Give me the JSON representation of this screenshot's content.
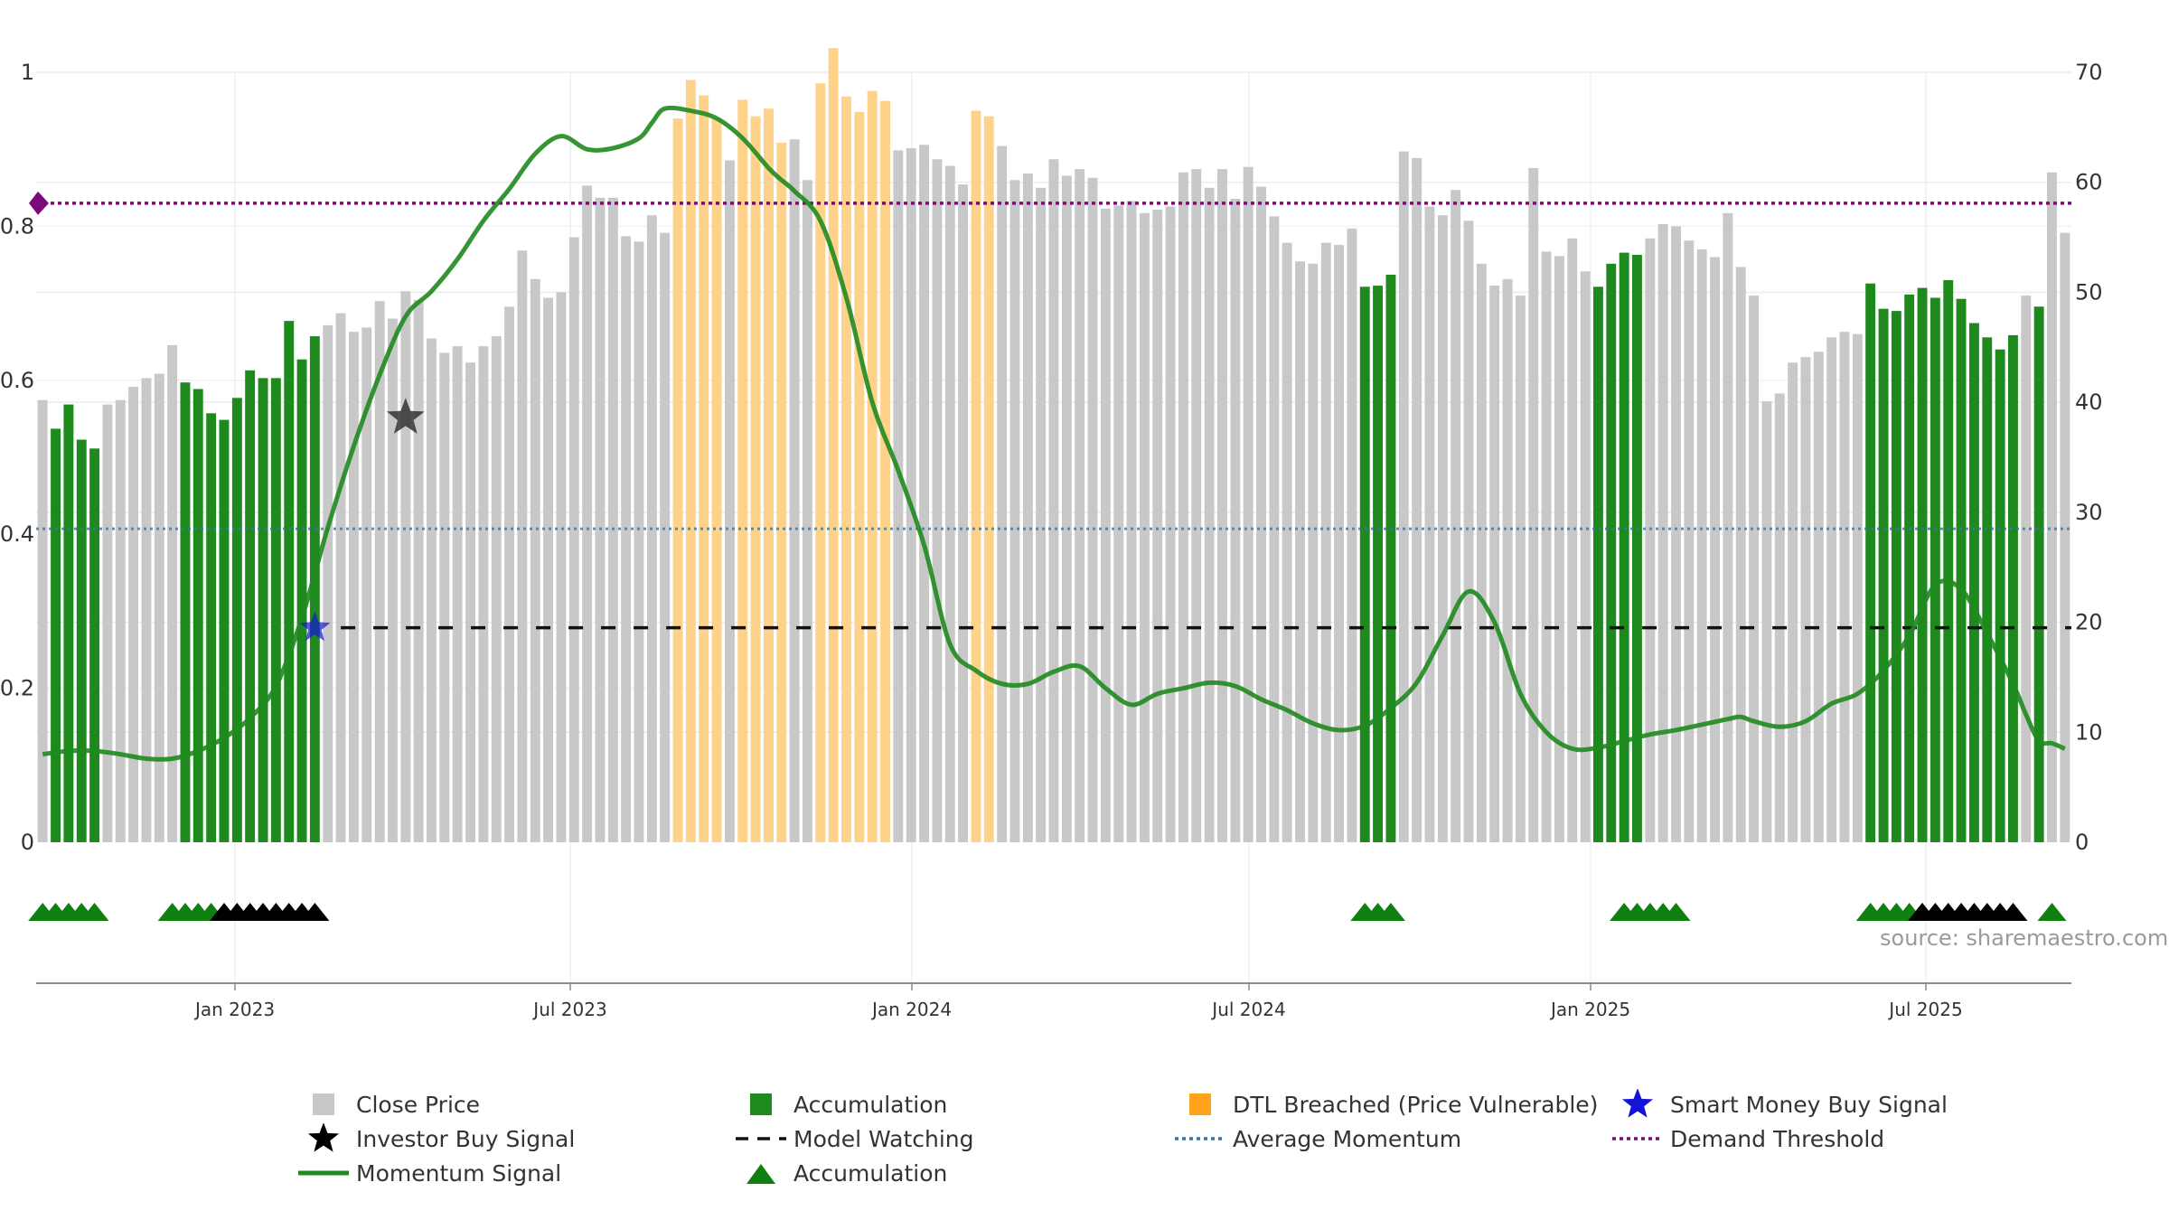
{
  "source_text": "source: sharemaestro.com",
  "colors": {
    "close_price": "#c8c8c8",
    "accumulation": "#1e8a1e",
    "dtl_breached": "#ffd28a",
    "momentum": "#1f8a1f",
    "model_watching": "#111111",
    "average_momentum": "#3a77a6",
    "demand_threshold": "#7d0a7d",
    "smart_money": "#1414d8",
    "investor_buy": "#333333",
    "acc_marker": "#0f7f0f",
    "watch_marker": "#000000"
  },
  "legend": [
    {
      "label": "Close Price",
      "symbol": "gray-square"
    },
    {
      "label": "Accumulation",
      "symbol": "green-square"
    },
    {
      "label": "DTL Breached (Price Vulnerable)",
      "symbol": "orange-square"
    },
    {
      "label": "Smart Money Buy Signal",
      "symbol": "blue-star"
    },
    {
      "label": "Investor Buy Signal",
      "symbol": "black-star"
    },
    {
      "label": "Model Watching",
      "symbol": "black-dash"
    },
    {
      "label": "Average Momentum",
      "symbol": "blue-dots"
    },
    {
      "label": "Demand Threshold",
      "symbol": "purple-dots"
    },
    {
      "label": "Momentum Signal",
      "symbol": "green-line"
    },
    {
      "label": "Accumulation",
      "symbol": "green-triangle"
    }
  ],
  "chart_data": {
    "type": "bar",
    "x_axis": {
      "ticks": [
        "Jan 2023",
        "Jul 2023",
        "Jan 2024",
        "Jul 2024",
        "Jan 2025",
        "Jul 2025"
      ]
    },
    "left_axis": {
      "ticks": [
        "0",
        "0.2",
        "0.4",
        "0.6",
        "0.8",
        "1"
      ],
      "ylim": [
        0,
        1
      ]
    },
    "right_axis": {
      "ticks": [
        "0",
        "10",
        "20",
        "30",
        "40",
        "50",
        "60",
        "70"
      ],
      "ylim": [
        0,
        70
      ]
    },
    "grid": true,
    "legend_position": "bottom",
    "series": [
      {
        "name": "Close Price",
        "axis": "right",
        "values": [
          40.2,
          37.6,
          39.8,
          36.6,
          35.8,
          39.8,
          40.2,
          41.4,
          42.2,
          42.6,
          45.2,
          41.8,
          41.2,
          39.0,
          38.4,
          40.4,
          42.9,
          42.2,
          42.2,
          47.4,
          43.9,
          46.0,
          47.0,
          48.1,
          46.4,
          46.8,
          49.2,
          47.6,
          50.1,
          49.3,
          45.8,
          44.5,
          45.1,
          43.6,
          45.1,
          46.0,
          48.7,
          53.8,
          51.2,
          49.5,
          50.0,
          55.0,
          59.7,
          58.6,
          58.6,
          55.1,
          54.6,
          57.0,
          55.4,
          65.8,
          69.3,
          67.9,
          65.8,
          62.0,
          67.5,
          66.0,
          66.7,
          63.6,
          63.9,
          60.2,
          69.0,
          72.2,
          67.8,
          66.4,
          68.3,
          67.4,
          62.9,
          63.1,
          63.4,
          62.1,
          61.5,
          59.8,
          66.5,
          66.0,
          63.3,
          60.2,
          60.8,
          59.5,
          62.1,
          60.6,
          61.2,
          60.4,
          57.6,
          57.9,
          58.3,
          57.2,
          57.5,
          57.8,
          60.9,
          61.2,
          59.5,
          61.2,
          58.5,
          61.4,
          59.6,
          56.9,
          54.5,
          52.8,
          52.6,
          54.5,
          54.3,
          55.8,
          50.5,
          50.6,
          51.6,
          62.8,
          62.2,
          57.8,
          57.0,
          59.3,
          56.5,
          52.6,
          50.6,
          51.2,
          49.7,
          61.3,
          53.7,
          53.3,
          54.9,
          51.9,
          50.5,
          52.6,
          53.6,
          53.4,
          54.9,
          56.2,
          56.0,
          54.7,
          53.9,
          53.2,
          57.2,
          52.3,
          49.7,
          40.1,
          40.8,
          43.6,
          44.1,
          44.6,
          45.9,
          46.4,
          46.2,
          50.8,
          48.5,
          48.3,
          49.8,
          50.4,
          49.5,
          51.1,
          49.4,
          47.2,
          45.9,
          44.8,
          46.1,
          49.7,
          48.7,
          60.9,
          55.4
        ]
      },
      {
        "name": "Accumulation",
        "axis": "right",
        "indices": [
          1,
          2,
          3,
          4,
          11,
          12,
          13,
          14,
          15,
          16,
          17,
          18,
          19,
          20,
          21,
          102,
          103,
          104,
          120,
          121,
          122,
          123,
          141,
          142,
          143,
          144,
          145,
          146,
          147,
          148,
          149,
          150,
          151,
          152,
          154
        ]
      },
      {
        "name": "DTL Breached (Price Vulnerable)",
        "axis": "right",
        "indices": [
          49,
          50,
          51,
          52,
          54,
          55,
          56,
          57,
          60,
          61,
          62,
          63,
          64,
          65,
          72,
          73
        ]
      },
      {
        "name": "Momentum Signal",
        "axis": "right",
        "x": [
          0,
          2,
          4,
          6,
          8,
          10,
          12,
          14,
          16,
          18,
          20,
          22,
          24,
          26,
          28,
          30,
          32,
          34,
          36,
          38,
          40,
          42,
          44,
          46,
          47,
          48,
          50,
          52,
          54,
          56,
          57,
          58,
          60,
          62,
          64,
          66,
          68,
          70,
          72,
          74,
          76,
          78,
          80,
          82,
          84,
          86,
          88,
          90,
          92,
          94,
          96,
          98,
          100,
          102,
          104,
          106,
          108,
          110,
          112,
          114,
          116,
          118,
          120,
          122,
          124,
          126,
          128,
          130,
          131,
          132,
          134,
          136,
          138,
          140,
          142,
          144,
          146,
          148,
          150,
          152,
          153,
          154,
          155,
          156
        ],
        "values": [
          8.0,
          8.3,
          8.3,
          8.0,
          7.6,
          7.6,
          8.3,
          9.5,
          11.3,
          14.2,
          20.4,
          28.6,
          36.0,
          42.5,
          47.8,
          50.1,
          53.0,
          56.5,
          59.4,
          62.6,
          64.2,
          63.0,
          63.1,
          64.0,
          65.4,
          66.7,
          66.5,
          65.8,
          64.0,
          61.3,
          60.2,
          59.2,
          56.5,
          49.5,
          40.0,
          33.8,
          27.0,
          18.0,
          15.6,
          14.4,
          14.4,
          15.5,
          16.0,
          14.0,
          12.5,
          13.5,
          14.0,
          14.5,
          14.2,
          13.0,
          12.0,
          10.8,
          10.2,
          10.6,
          12.2,
          14.5,
          18.8,
          22.8,
          20.0,
          13.5,
          10.0,
          8.5,
          8.6,
          9.2,
          9.8,
          10.2,
          10.7,
          11.2,
          11.4,
          11.0,
          10.5,
          11.0,
          12.6,
          13.5,
          15.6,
          18.8,
          23.4,
          23.0,
          19.0,
          14.4,
          11.6,
          9.2,
          9.0,
          8.5
        ]
      },
      {
        "name": "Average Momentum",
        "axis": "right",
        "value": 28.5
      },
      {
        "name": "Demand Threshold",
        "axis": "left",
        "value": 0.83
      },
      {
        "name": "Model Watching",
        "axis": "right",
        "value": 19.5,
        "from_index": 23
      },
      {
        "name": "Investor Buy Signal",
        "points": [
          {
            "index": 28,
            "value": 38.6
          }
        ]
      },
      {
        "name": "Smart Money Buy Signal",
        "points": [
          {
            "index": 21,
            "value": 19.5
          }
        ]
      },
      {
        "name": "Accumulation markers",
        "indices": [
          0,
          1,
          2,
          3,
          4,
          10,
          11,
          12,
          13,
          102,
          103,
          104,
          122,
          123,
          124,
          125,
          126,
          141,
          142,
          143,
          144,
          145,
          155
        ]
      },
      {
        "name": "Model Watching markers",
        "indices": [
          14,
          15,
          16,
          17,
          18,
          19,
          20,
          21,
          145,
          146,
          147,
          148,
          149,
          150,
          151,
          152
        ]
      }
    ]
  }
}
